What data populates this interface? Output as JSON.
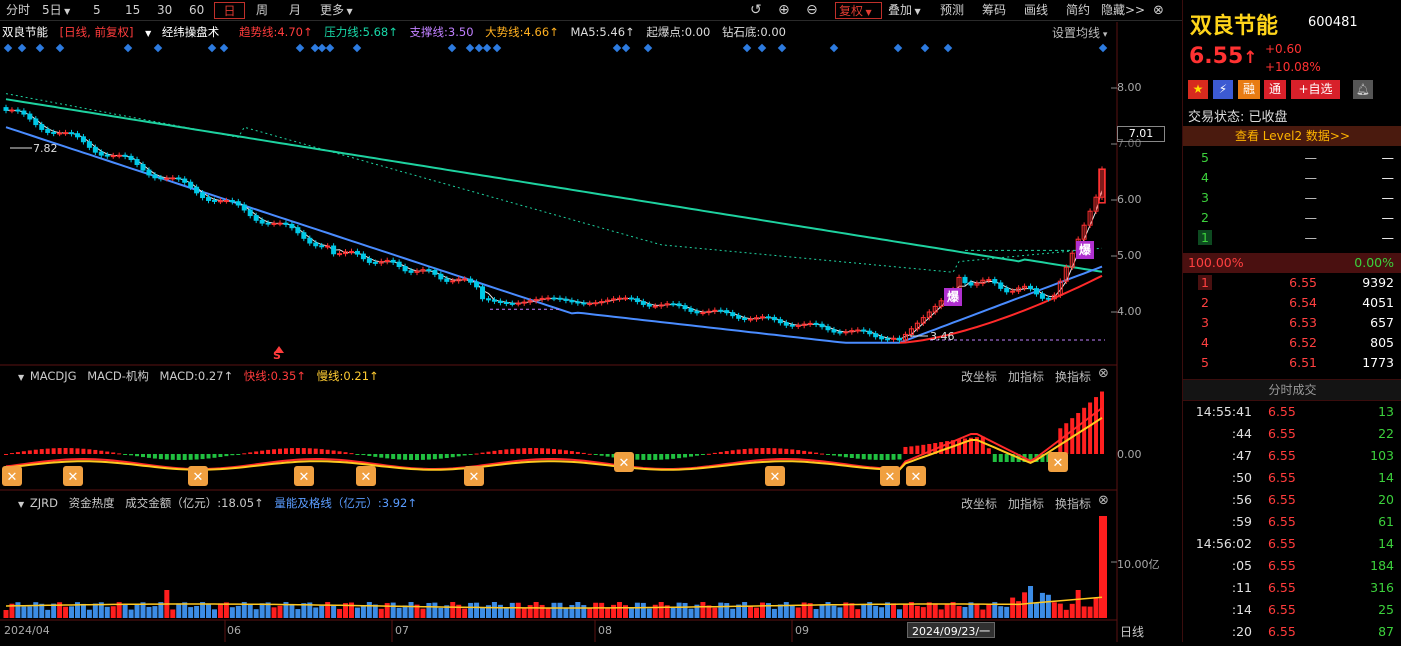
{
  "toolbar": {
    "periods": [
      "分时",
      "5日",
      "5",
      "15",
      "30",
      "60",
      "日",
      "周",
      "月",
      "更多"
    ],
    "selected": "日",
    "right_buttons": [
      "复权",
      "叠加",
      "预测",
      "筹码",
      "画线",
      "简约",
      "隐藏>>"
    ]
  },
  "main_legend": {
    "name": "双良节能",
    "mode": "[日线, 前复权]",
    "indicator": "经纬操盘术",
    "items": [
      {
        "label": "趋势线:4.70↑",
        "color": "#ff3c3c"
      },
      {
        "label": "压力线:5.68↑",
        "color": "#18d8a8"
      },
      {
        "label": "支撑线:3.50",
        "color": "#c080ff"
      },
      {
        "label": "大势线:4.66↑",
        "color": "#ffb020"
      },
      {
        "label": "MA5:5.46↑",
        "color": "#dcdcdc"
      },
      {
        "label": "起爆点:0.00",
        "color": "#dcdcdc"
      },
      {
        "label": "钻石底:0.00",
        "color": "#dcdcdc"
      }
    ],
    "settings": "设置均线"
  },
  "main_yaxis": [
    "8.00",
    "7.00",
    "6.00",
    "5.00",
    "4.00"
  ],
  "price_tag": "7.01",
  "annotations": {
    "high": "7.82",
    "low": "3.46",
    "boom": "爆",
    "s": "S"
  },
  "macd_panel": {
    "header": [
      "MACDJG",
      "MACD-机构",
      "MACD:0.27↑"
    ],
    "fast": "快线:0.35↑",
    "slow": "慢线:0.21↑",
    "axis": "0.00",
    "buttons": [
      "改坐标",
      "加指标",
      "换指标"
    ]
  },
  "zjrd_panel": {
    "header": [
      "ZJRD",
      "资金热度",
      "成交金额（亿元）:18.05↑"
    ],
    "line": "量能及格线（亿元）:3.92↑",
    "axis": "10.00亿",
    "buttons": [
      "改坐标",
      "加指标",
      "换指标"
    ]
  },
  "xaxis": {
    "labels": [
      "2024/04",
      "06",
      "07",
      "08",
      "09"
    ],
    "cursor": "2024/09/23/一",
    "period": "日线"
  },
  "quote": {
    "name": "双良节能",
    "code": "600481",
    "price": "6.55",
    "arrow": "↑",
    "change": "+0.60",
    "pct": "+10.08%",
    "tags": [
      "融",
      "通"
    ],
    "add_fav": "+自选",
    "status_label": "交易状态:",
    "status": "已收盘",
    "level2": "查看 Level2 数据>>",
    "sell": [
      {
        "n": "5",
        "p": "—",
        "v": "—"
      },
      {
        "n": "4",
        "p": "—",
        "v": "—"
      },
      {
        "n": "3",
        "p": "—",
        "v": "—"
      },
      {
        "n": "2",
        "p": "—",
        "v": "—"
      },
      {
        "n": "1",
        "p": "—",
        "v": "—"
      }
    ],
    "ratio_left": "100.00%",
    "ratio_right": "0.00%",
    "buy": [
      {
        "n": "1",
        "p": "6.55",
        "v": "9392"
      },
      {
        "n": "2",
        "p": "6.54",
        "v": "4051"
      },
      {
        "n": "3",
        "p": "6.53",
        "v": "657"
      },
      {
        "n": "4",
        "p": "6.52",
        "v": "805"
      },
      {
        "n": "5",
        "p": "6.51",
        "v": "1773"
      }
    ],
    "ticks_title": "分时成交",
    "ticks": [
      {
        "t": "14:55:41",
        "p": "6.55",
        "v": "13"
      },
      {
        "t": ":44",
        "p": "6.55",
        "v": "22"
      },
      {
        "t": ":47",
        "p": "6.55",
        "v": "103"
      },
      {
        "t": ":50",
        "p": "6.55",
        "v": "14"
      },
      {
        "t": ":56",
        "p": "6.55",
        "v": "20"
      },
      {
        "t": ":59",
        "p": "6.55",
        "v": "61"
      },
      {
        "t": "14:56:02",
        "p": "6.55",
        "v": "14"
      },
      {
        "t": ":05",
        "p": "6.55",
        "v": "184"
      },
      {
        "t": ":11",
        "p": "6.55",
        "v": "316"
      },
      {
        "t": ":14",
        "p": "6.55",
        "v": "25"
      },
      {
        "t": ":20",
        "p": "6.55",
        "v": "87"
      }
    ]
  },
  "colors": {
    "up": "#ff3232",
    "down": "#00c8e6",
    "ma_green": "#1ed2a0",
    "trend_blue": "#4a8cff"
  }
}
